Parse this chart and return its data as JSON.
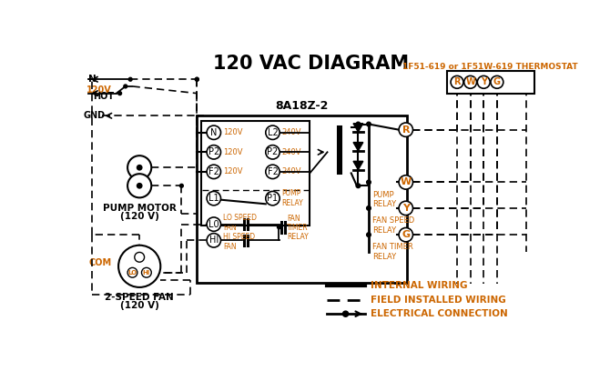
{
  "title": "120 VAC DIAGRAM",
  "orange": "#CC6600",
  "black": "#000000",
  "bg_color": "#FFFFFF",
  "thermostat_label": "1F51-619 or 1F51W-619 THERMOSTAT",
  "control_box_label": "8A18Z-2",
  "legend_internal": "INTERNAL WIRING",
  "legend_field": "FIELD INSTALLED WIRING",
  "legend_elec": "ELECTRICAL CONNECTION",
  "pump_motor_label": "PUMP MOTOR",
  "pump_motor_label2": "(120 V)",
  "fan_label": "2-SPEED FAN",
  "fan_label2": "(120 V)",
  "com_label": "COM",
  "pump_relay_lbl": "PUMP\nRELAY",
  "fan_speed_lbl": "FAN SPEED\nRELAY",
  "fan_timer_lbl": "FAN TIMER\nRELAY",
  "lo_speed_lbl": "LO SPEED\nFAN",
  "hi_speed_lbl": "HI SPEED\nFAN",
  "fan_timer_inner_lbl": "FAN\nTIMER\nRELAY",
  "pump_relay_inner_lbl": "PUMP\nRELAY"
}
